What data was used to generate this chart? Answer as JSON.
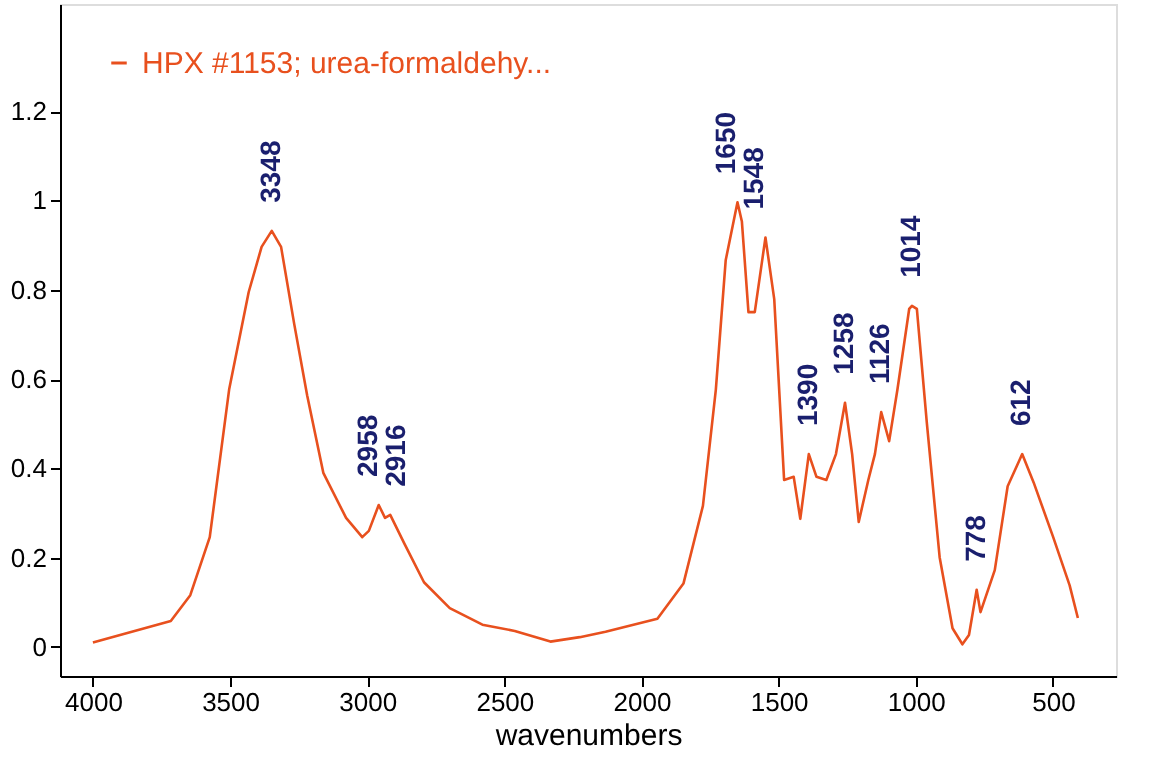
{
  "chart_data": {
    "type": "line",
    "xlabel": "wavenumbers",
    "xlim": [
      4120,
      270
    ],
    "ylim": [
      -0.065,
      1.44
    ],
    "xticks": [
      4000,
      3500,
      3000,
      2500,
      2000,
      1500,
      1000,
      500
    ],
    "yticks": [
      0,
      0.2,
      0.4,
      0.6,
      0.8,
      1,
      1.2
    ],
    "grid": false,
    "legend": "top left",
    "marker": "none",
    "line_style": "solid",
    "series": [
      {
        "name": "HPX #1153; urea-formaldehy...",
        "color": "#e8501e",
        "x": [
          4000,
          3716,
          3645,
          3574,
          3503,
          3432,
          3385,
          3348,
          3314,
          3266,
          3219,
          3160,
          3077,
          3018,
          2994,
          2958,
          2935,
          2916,
          2864,
          2793,
          2699,
          2580,
          2462,
          2332,
          2225,
          2131,
          1942,
          1847,
          1776,
          1729,
          1693,
          1650,
          1634,
          1610,
          1587,
          1548,
          1516,
          1480,
          1445,
          1421,
          1390,
          1362,
          1326,
          1291,
          1258,
          1232,
          1208,
          1173,
          1149,
          1126,
          1097,
          1067,
          1024,
          1014,
          996,
          960,
          913,
          866,
          830,
          806,
          778,
          764,
          712,
          665,
          612,
          570,
          499,
          439,
          409
        ],
        "values": [
          0.01,
          0.058,
          0.116,
          0.246,
          0.578,
          0.795,
          0.896,
          0.932,
          0.896,
          0.723,
          0.564,
          0.39,
          0.289,
          0.246,
          0.26,
          0.318,
          0.289,
          0.296,
          0.231,
          0.145,
          0.087,
          0.05,
          0.036,
          0.012,
          0.022,
          0.034,
          0.063,
          0.142,
          0.316,
          0.576,
          0.866,
          0.996,
          0.953,
          0.75,
          0.75,
          0.917,
          0.779,
          0.374,
          0.381,
          0.287,
          0.432,
          0.381,
          0.374,
          0.432,
          0.547,
          0.432,
          0.28,
          0.374,
          0.432,
          0.526,
          0.461,
          0.576,
          0.757,
          0.764,
          0.757,
          0.504,
          0.201,
          0.042,
          0.006,
          0.027,
          0.128,
          0.078,
          0.172,
          0.36,
          0.432,
          0.368,
          0.246,
          0.138,
          0.065
        ]
      }
    ],
    "annotations": [
      {
        "text": "3348",
        "x": 3348,
        "y": 0.932
      },
      {
        "text": "2958",
        "x": 2958,
        "y": 0.318
      },
      {
        "text": "2916",
        "x": 2916,
        "y": 0.296
      },
      {
        "text": "1650",
        "x": 1650,
        "y": 0.996
      },
      {
        "text": "1548",
        "x": 1548,
        "y": 0.917
      },
      {
        "text": "1390",
        "x": 1390,
        "y": 0.432
      },
      {
        "text": "1258",
        "x": 1258,
        "y": 0.547
      },
      {
        "text": "1126",
        "x": 1126,
        "y": 0.526
      },
      {
        "text": "1014",
        "x": 1014,
        "y": 0.764
      },
      {
        "text": "778",
        "x": 778,
        "y": 0.128
      },
      {
        "text": "612",
        "x": 612,
        "y": 0.432
      }
    ]
  }
}
